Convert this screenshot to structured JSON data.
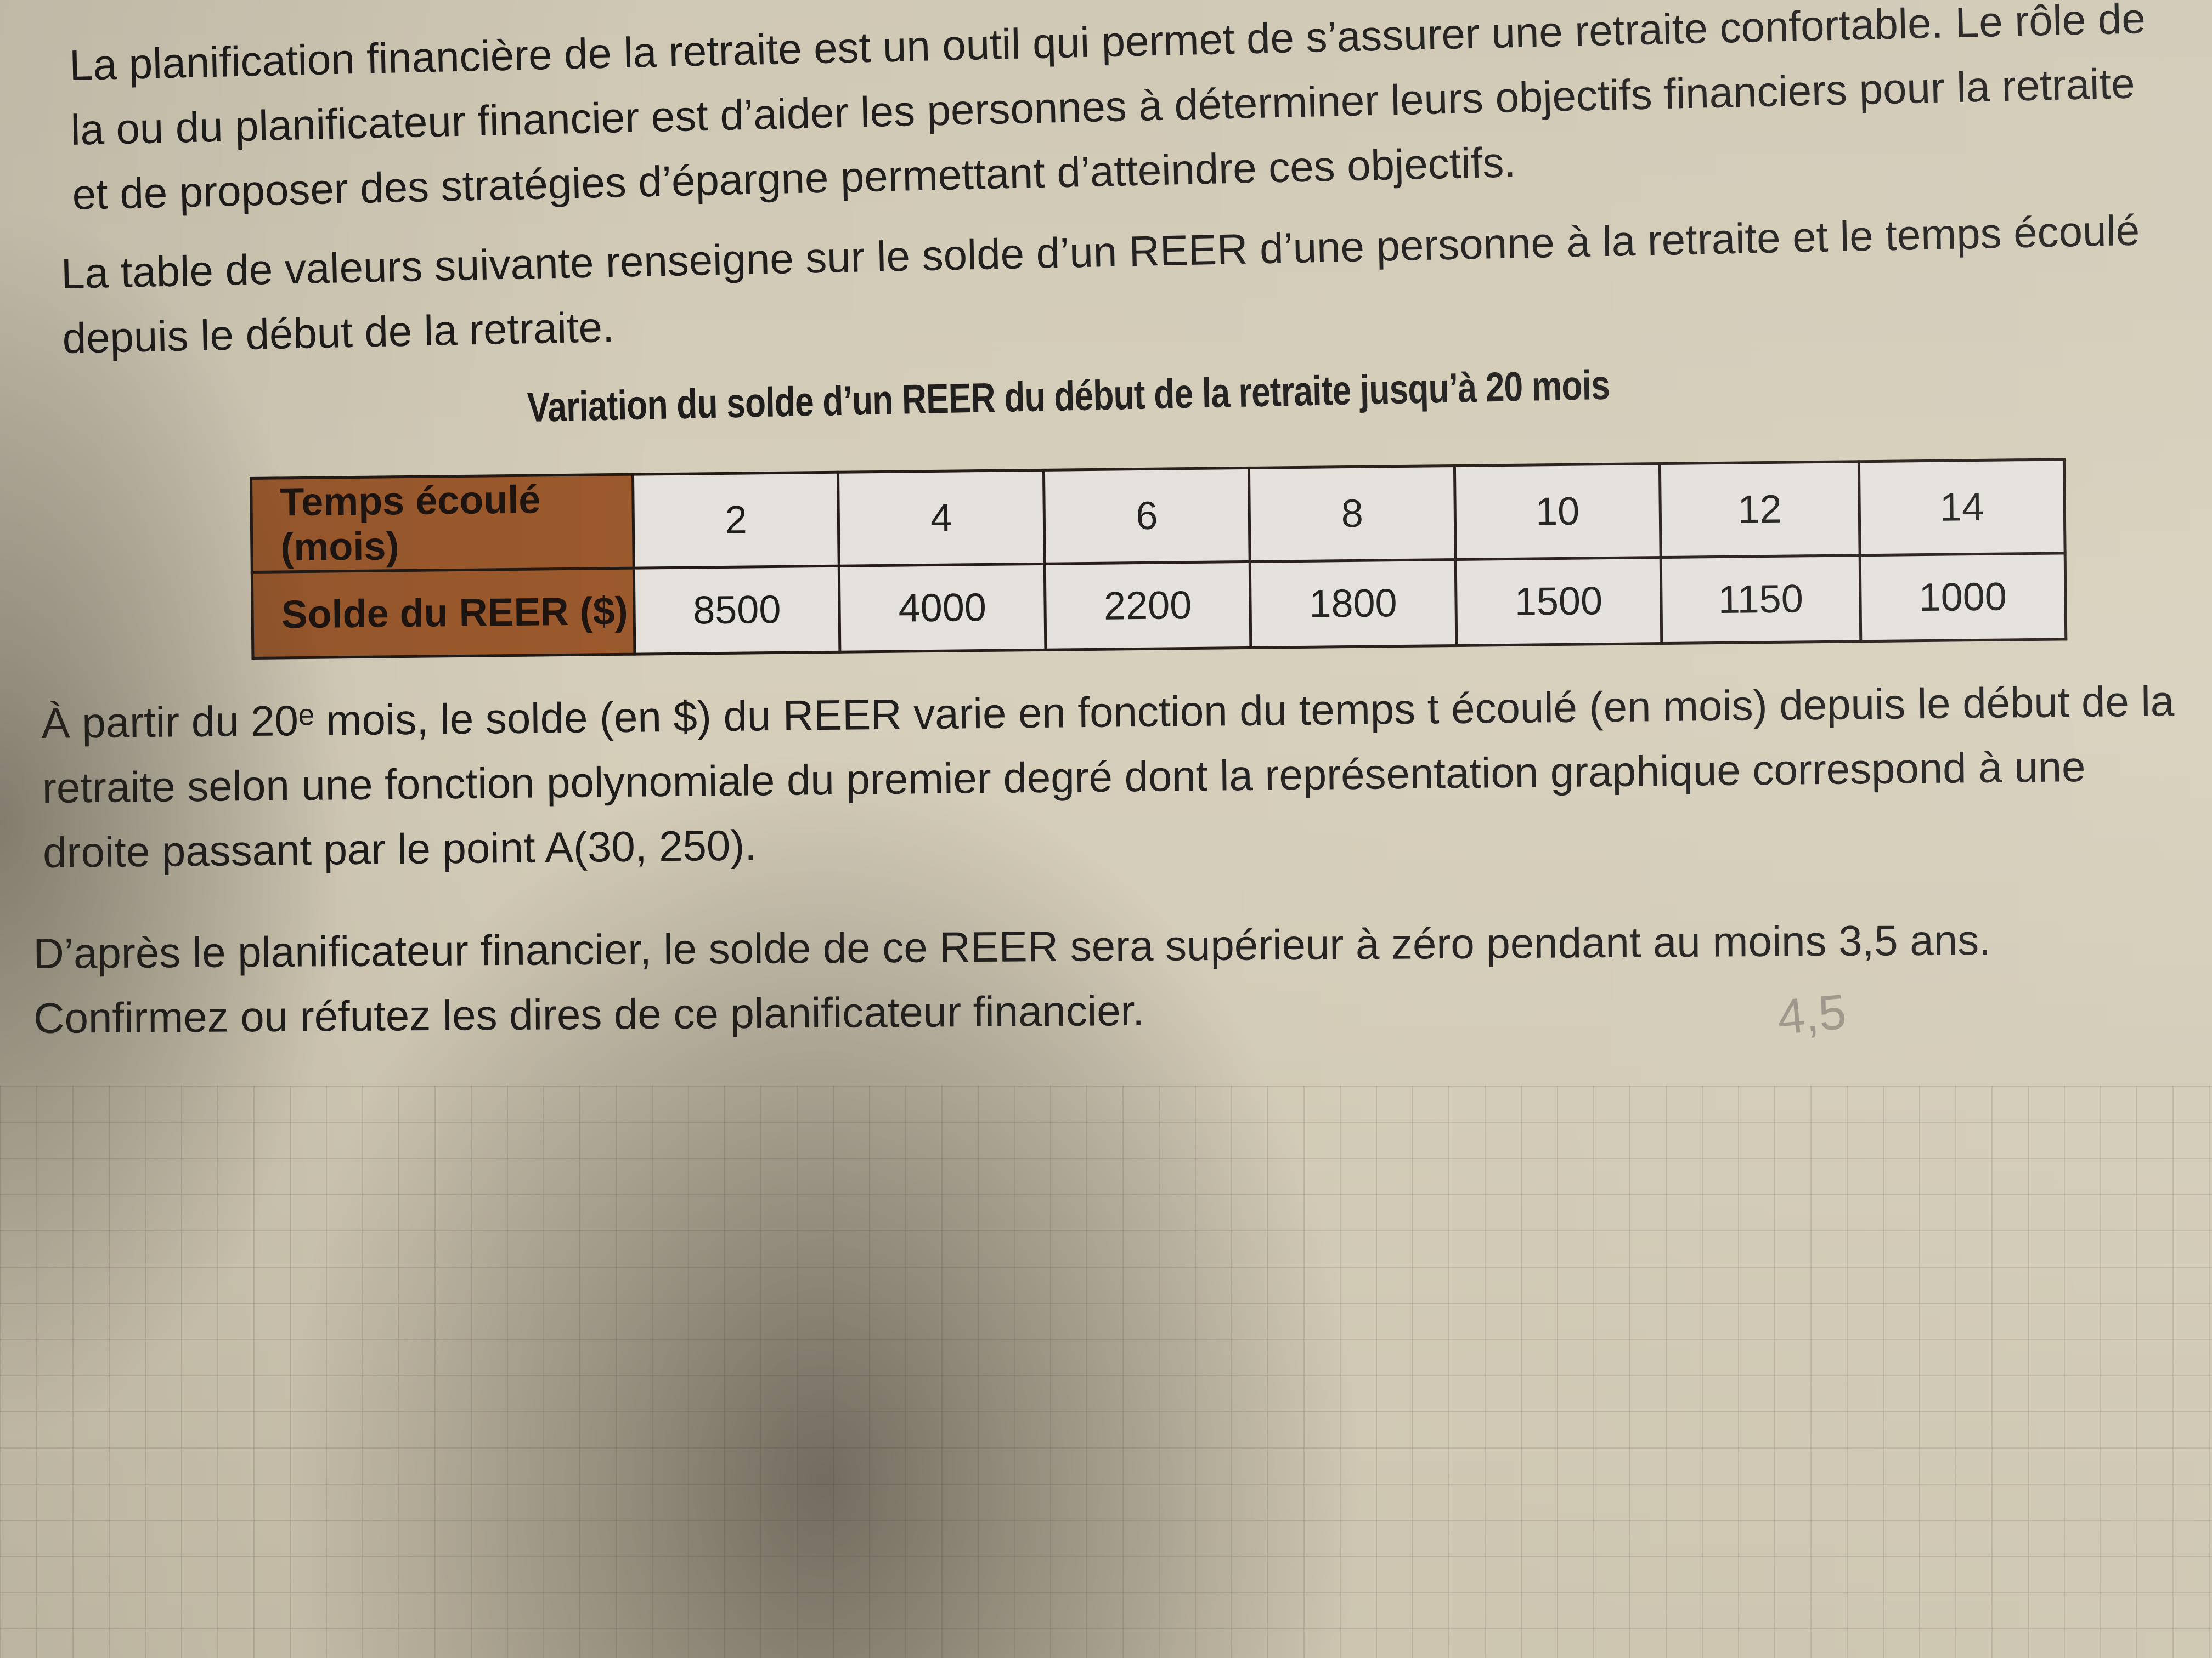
{
  "paragraphs": {
    "p1": "La planification financière de la retraite est un outil qui permet de s’assurer une retraite confortable. Le rôle de la ou du planificateur financier est d’aider les personnes à déterminer leurs objectifs financiers pour la retraite et de proposer des stratégies d’épargne permettant d’atteindre ces objectifs.",
    "p2": "La table de valeurs suivante renseigne sur le solde d’un REER d’une personne à la retraite et le temps écoulé depuis le début de la retraite.",
    "p3": "À partir du 20ᵉ mois, le solde (en $) du REER varie en fonction du temps t écoulé (en mois) depuis le début de la retraite selon une fonction polynomiale du premier degré dont la représentation graphique correspond à une droite passant par le point A(30, 250).",
    "p4": "D’après le planificateur financier, le solde de ce REER sera supérieur à zéro pendant au moins 3,5 ans. Confirmez ou réfutez les dires de ce planificateur financier."
  },
  "table": {
    "title": "Variation du solde d’un REER du début de la retraite jusqu’à 20 mois",
    "row_headers": [
      "Temps écoulé (mois)",
      "Solde du REER ($)"
    ],
    "time": [
      "2",
      "4",
      "6",
      "8",
      "10",
      "12",
      "14"
    ],
    "balance": [
      "8500",
      "4000",
      "2200",
      "1800",
      "1500",
      "1150",
      "1000"
    ],
    "header_color": "#9c5a2d"
  },
  "pencil_note": "4,5"
}
